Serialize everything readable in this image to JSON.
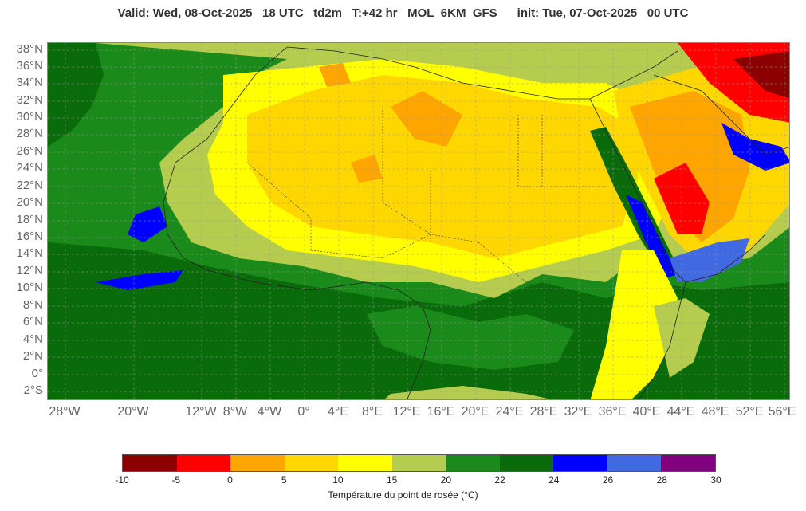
{
  "header": {
    "title": "Valid: Wed, 08-Oct-2025   18 UTC   td2m   T:+42 hr   MOL_6KM_GFS      init: Tue, 07-Oct-2025   00 UTC"
  },
  "map": {
    "variable": "td2m",
    "lat_labels": [
      "38°N",
      "36°N",
      "34°N",
      "32°N",
      "30°N",
      "28°N",
      "26°N",
      "24°N",
      "22°N",
      "20°N",
      "18°N",
      "16°N",
      "14°N",
      "12°N",
      "10°N",
      "8°N",
      "6°N",
      "4°N",
      "2°N",
      "0°",
      "2°S"
    ],
    "lon_labels": [
      "28°W",
      "20°W",
      "12°W",
      "8°W",
      "4°W",
      "0°",
      "4°E",
      "8°E",
      "12°E",
      "16°E",
      "20°E",
      "24°E",
      "28°E",
      "32°E",
      "36°E",
      "40°E",
      "44°E",
      "48°E",
      "52°E",
      "56°E"
    ]
  },
  "legend": {
    "caption": "Température du point de rosée (°C)",
    "ticks": [
      "-10",
      "-5",
      "0",
      "5",
      "10",
      "15",
      "20",
      "22",
      "24",
      "26",
      "28",
      "30"
    ],
    "colors": [
      "#8b0000",
      "#ff0000",
      "#ffa500",
      "#ffd700",
      "#ffff00",
      "#b5cc4f",
      "#1a8a1a",
      "#0a6b0a",
      "#0000ff",
      "#4169e1",
      "#800080"
    ]
  }
}
